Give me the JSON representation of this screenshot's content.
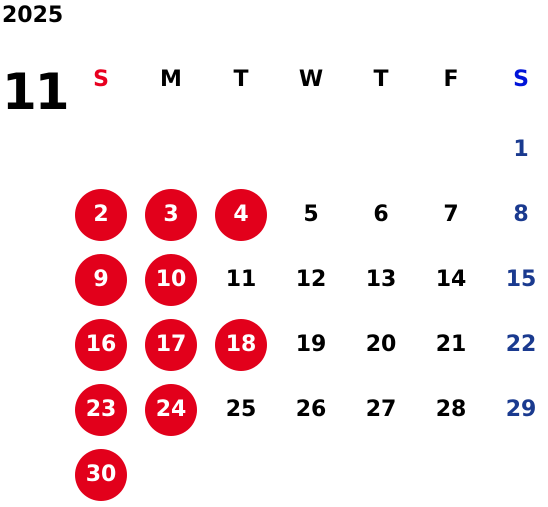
{
  "header": {
    "year": "2025",
    "month": "11"
  },
  "weekdays": [
    {
      "label": "S",
      "color": "#e8001f"
    },
    {
      "label": "M",
      "color": "#000000"
    },
    {
      "label": "T",
      "color": "#000000"
    },
    {
      "label": "W",
      "color": "#000000"
    },
    {
      "label": "T",
      "color": "#000000"
    },
    {
      "label": "F",
      "color": "#000000"
    },
    {
      "label": "S",
      "color": "#0014d9"
    }
  ],
  "colors": {
    "holiday_circle": "#e2001b",
    "holiday_text": "#ffffff",
    "weekday_text": "#000000",
    "saturday_text": "#1a3a8f"
  },
  "weeks": [
    [
      null,
      null,
      null,
      null,
      null,
      null,
      {
        "day": "1",
        "type": "saturday"
      }
    ],
    [
      {
        "day": "2",
        "type": "holiday"
      },
      {
        "day": "3",
        "type": "holiday"
      },
      {
        "day": "4",
        "type": "holiday"
      },
      {
        "day": "5",
        "type": "weekday"
      },
      {
        "day": "6",
        "type": "weekday"
      },
      {
        "day": "7",
        "type": "weekday"
      },
      {
        "day": "8",
        "type": "saturday"
      }
    ],
    [
      {
        "day": "9",
        "type": "holiday"
      },
      {
        "day": "10",
        "type": "holiday"
      },
      {
        "day": "11",
        "type": "weekday"
      },
      {
        "day": "12",
        "type": "weekday"
      },
      {
        "day": "13",
        "type": "weekday"
      },
      {
        "day": "14",
        "type": "weekday"
      },
      {
        "day": "15",
        "type": "saturday"
      }
    ],
    [
      {
        "day": "16",
        "type": "holiday"
      },
      {
        "day": "17",
        "type": "holiday"
      },
      {
        "day": "18",
        "type": "holiday"
      },
      {
        "day": "19",
        "type": "weekday"
      },
      {
        "day": "20",
        "type": "weekday"
      },
      {
        "day": "21",
        "type": "weekday"
      },
      {
        "day": "22",
        "type": "saturday"
      }
    ],
    [
      {
        "day": "23",
        "type": "holiday"
      },
      {
        "day": "24",
        "type": "holiday"
      },
      {
        "day": "25",
        "type": "weekday"
      },
      {
        "day": "26",
        "type": "weekday"
      },
      {
        "day": "27",
        "type": "weekday"
      },
      {
        "day": "28",
        "type": "weekday"
      },
      {
        "day": "29",
        "type": "saturday"
      }
    ],
    [
      {
        "day": "30",
        "type": "holiday"
      },
      null,
      null,
      null,
      null,
      null,
      null
    ]
  ]
}
